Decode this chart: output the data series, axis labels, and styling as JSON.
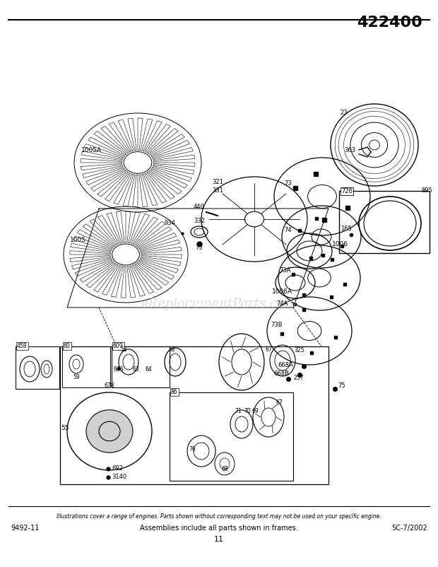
{
  "title": "422400",
  "bg_color": "#ffffff",
  "footer_left": "9492-11",
  "footer_center": "Assemblies include all parts shown in frames.",
  "footer_page": "11",
  "footer_right": "5C-7/2002",
  "footer_italic": "Illustrations cover a range of engines. Parts shown without corresponding text may not be used on your specific engine.",
  "watermark": "eReplacementParts.com",
  "watermark_color": "#c8c8c8"
}
